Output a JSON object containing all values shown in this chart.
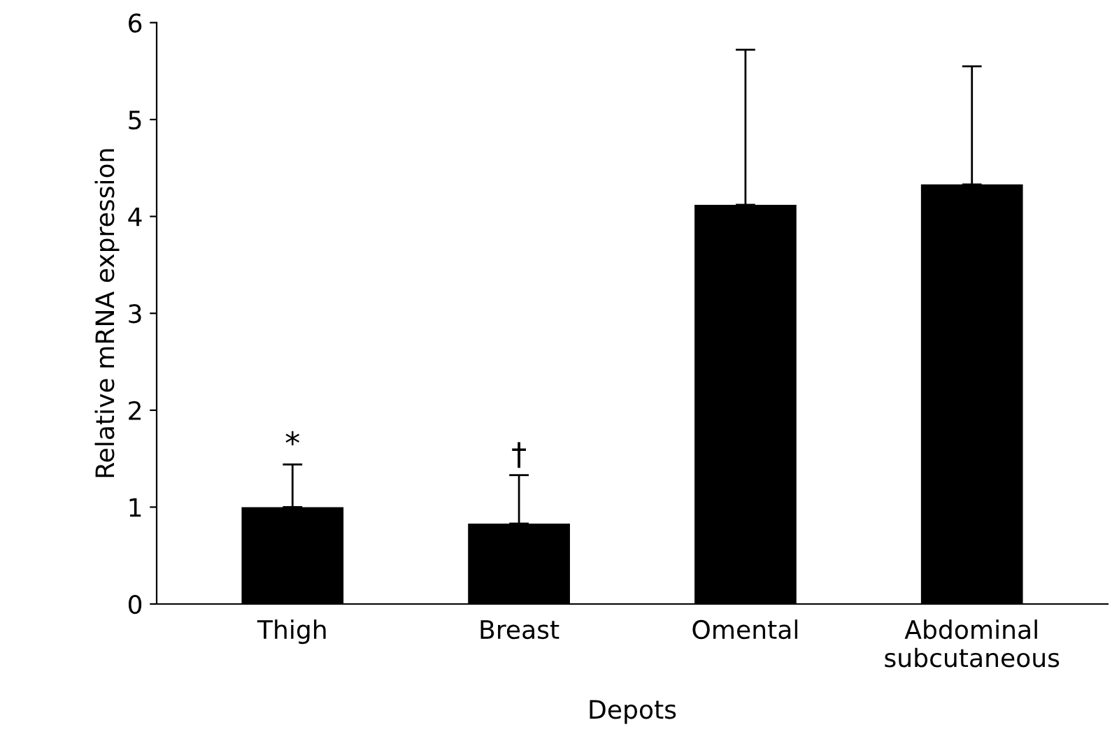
{
  "chart_data": {
    "type": "bar",
    "xlabel": "Depots",
    "ylabel": "Relative mRNA expression",
    "categories": [
      "Thigh",
      "Breast",
      "Omental",
      "Abdominal\nsubcutaneous"
    ],
    "values": [
      1.0,
      0.83,
      4.12,
      4.33
    ],
    "errors": [
      [
        1.0,
        1.44
      ],
      [
        0.83,
        1.33
      ],
      [
        4.12,
        5.72
      ],
      [
        4.33,
        5.55
      ]
    ],
    "color": "#000000",
    "ylim": [
      0,
      6
    ],
    "yticks": [
      0,
      1,
      2,
      3,
      4,
      5,
      6
    ],
    "grid": false,
    "annotations": [
      "*",
      "†"
    ]
  }
}
